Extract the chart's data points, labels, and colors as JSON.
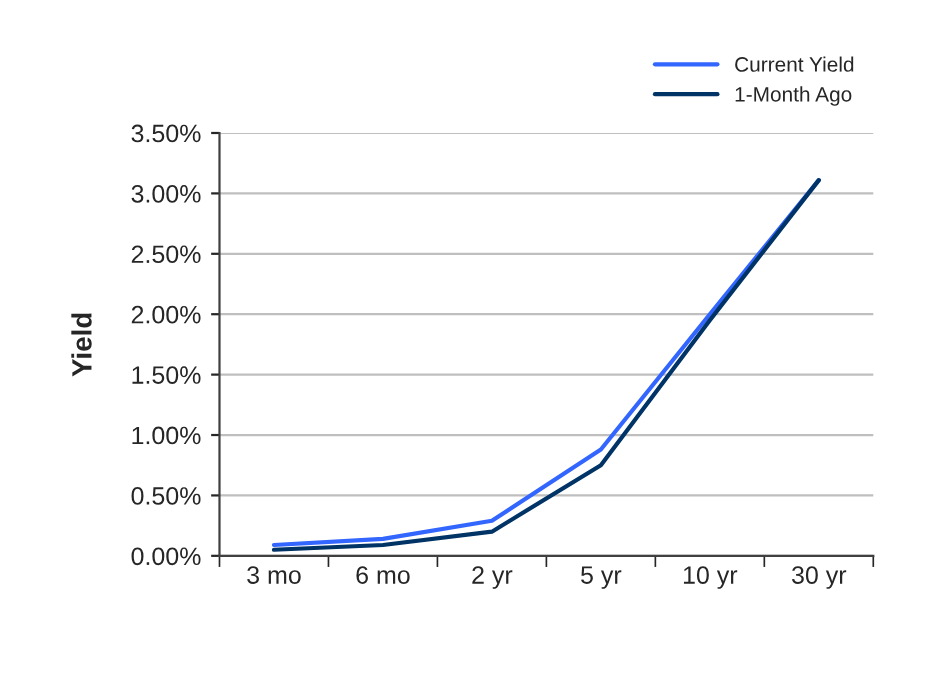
{
  "chart_data": {
    "type": "line",
    "ylabel": "Yield",
    "categories": [
      "3 mo",
      "6 mo",
      "2 yr",
      "5 yr",
      "10 yr",
      "30 yr"
    ],
    "series": [
      {
        "name": "Current Yield",
        "color": "#3366ff",
        "values": [
          0.09,
          0.14,
          0.29,
          0.88,
          2.0,
          3.11
        ]
      },
      {
        "name": "1-Month Ago",
        "color": "#003366",
        "values": [
          0.05,
          0.09,
          0.2,
          0.75,
          1.95,
          3.11
        ]
      }
    ],
    "ylim": [
      0,
      3.5
    ],
    "yticks": [
      {
        "value": 0,
        "label": "0.00%"
      },
      {
        "value": 0.5,
        "label": "0.50%"
      },
      {
        "value": 1,
        "label": "1.00%"
      },
      {
        "value": 1.5,
        "label": "1.50%"
      },
      {
        "value": 2,
        "label": "2.00%"
      },
      {
        "value": 2.5,
        "label": "2.50%"
      },
      {
        "value": 3,
        "label": "3.00%"
      },
      {
        "value": 3.5,
        "label": "3.50%"
      }
    ],
    "grid": "y",
    "legend": "top right",
    "marker": "none",
    "line_style": "solid"
  }
}
